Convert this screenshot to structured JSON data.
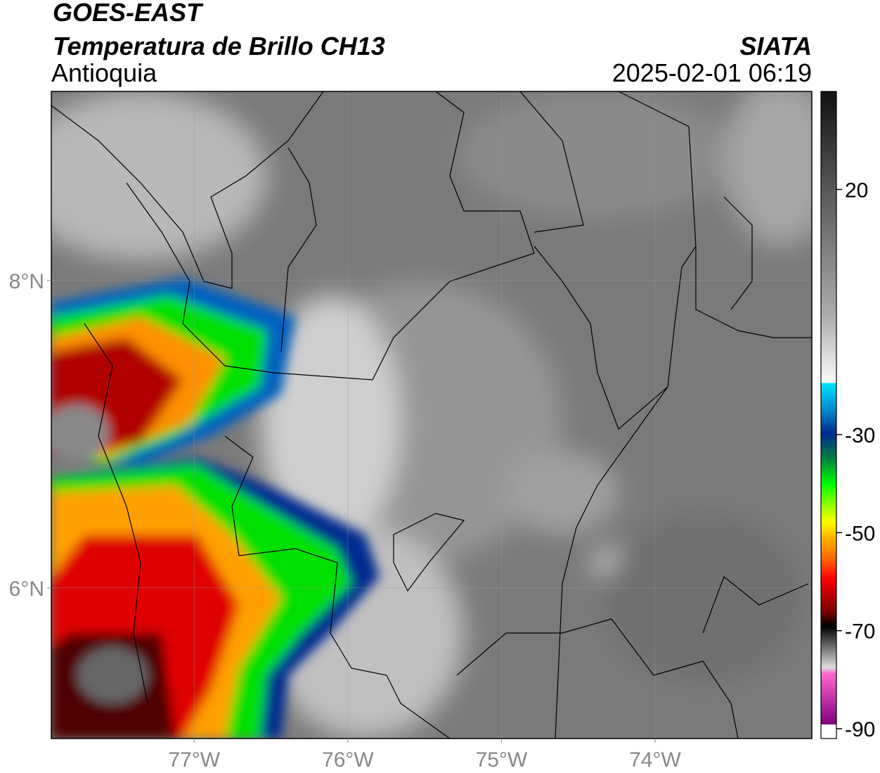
{
  "header": {
    "title": "GOES-EAST",
    "subtitle": "Temperatura de Brillo CH13",
    "region": "Antioquia",
    "source": "SIATA",
    "datetime": "2025-02-01 06:19"
  },
  "map": {
    "xlim": [
      -77.93,
      -72.98
    ],
    "ylim": [
      5.02,
      9.23
    ],
    "xticks": [
      {
        "value": -77,
        "label": "77°W"
      },
      {
        "value": -76,
        "label": "76°W"
      },
      {
        "value": -75,
        "label": "75°W"
      },
      {
        "value": -74,
        "label": "74°W"
      }
    ],
    "yticks": [
      {
        "value": 8,
        "label": "8°N"
      },
      {
        "value": 6,
        "label": "6°N"
      }
    ],
    "grid": true
  },
  "colorbar": {
    "lim": [
      -92,
      40
    ],
    "ticks": [
      20,
      -30,
      -50,
      -70,
      -90
    ]
  }
}
